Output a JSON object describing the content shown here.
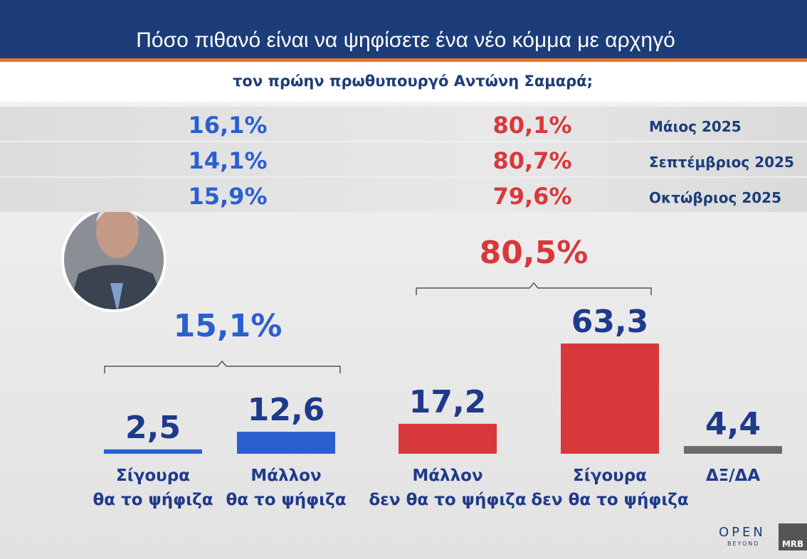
{
  "header": {
    "title": "Πόσο πιθανό είναι να ψηφίσετε ένα νέο κόμμα με αρχηγό",
    "subtitle": "τον πρώην πρωθυπουργό Αντώνη Σαμαρά;"
  },
  "table": {
    "rows": [
      [
        "16,1%",
        "80,1%",
        "Μάιος 2025"
      ],
      [
        "14,1%",
        "80,7%",
        "Σεπτέμβριος 2025"
      ],
      [
        "15,9%",
        "79,6%",
        "Οκτώβριος 2025"
      ]
    ]
  },
  "chart_data": {
    "type": "bar",
    "categories": [
      "Σίγουρα\nθα το ψήφιζα",
      "Μάλλον\nθα το ψήφιζα",
      "Μάλλον\nδεν θα το ψήφιζα",
      "Σίγουρα\nδεν θα το ψήφιζα",
      "ΔΞ/ΔΑ"
    ],
    "values": [
      2.5,
      12.6,
      17.2,
      63.3,
      4.4
    ],
    "value_labels": [
      "2,5",
      "12,6",
      "17,2",
      "63,3",
      "4,4"
    ],
    "colors": [
      "#2a5fd0",
      "#2a5fd0",
      "#d8383c",
      "#d8383c",
      "#6b6b6b"
    ],
    "annotations": [
      {
        "text": "15,1%",
        "color": "#2a5fd0"
      },
      {
        "text": "80,5%",
        "color": "#d8383c"
      }
    ]
  },
  "footer": {
    "logo": "OPEN",
    "logo_sub": "BEYOND",
    "source": "MRB"
  }
}
